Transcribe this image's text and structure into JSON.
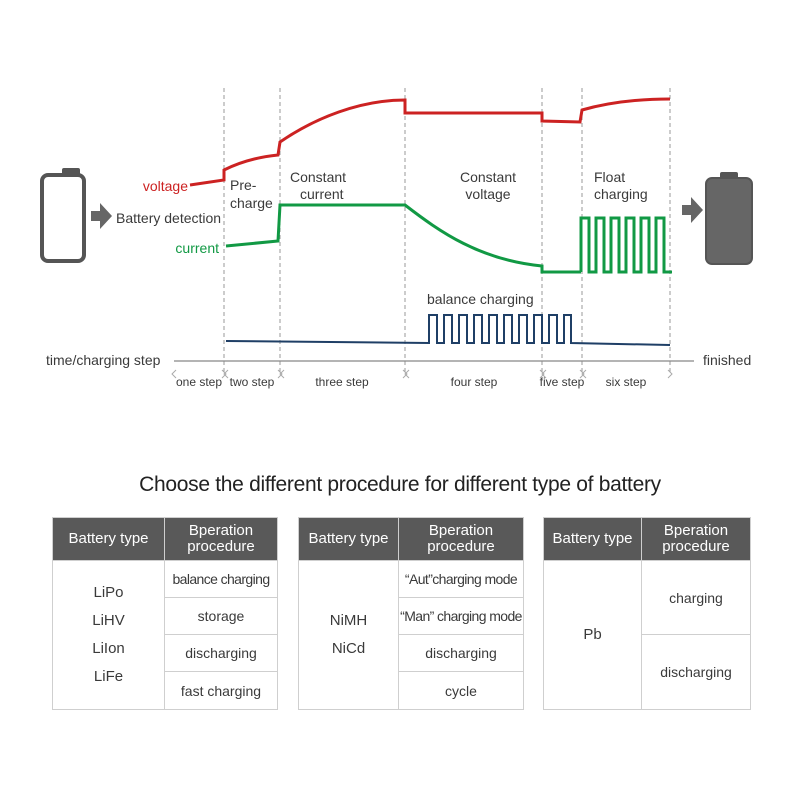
{
  "diagram": {
    "battery_detection": "Battery detection",
    "voltage_label": "voltage",
    "current_label": "current",
    "balance_label": "balance charging",
    "time_label": "time/charging step",
    "finished_label": "finished",
    "phases": {
      "precharge": [
        "Pre-",
        "charge"
      ],
      "constant_current": [
        "Constant",
        "current"
      ],
      "constant_voltage": [
        "Constant",
        "voltage"
      ],
      "float_charging": [
        "Float",
        "charging"
      ]
    },
    "steps": [
      "one step",
      "two step",
      "three step",
      "four step",
      "five step",
      "six step"
    ],
    "colors": {
      "voltage": "#cc2222",
      "current": "#119944",
      "balance": "#1f3f66",
      "battery": "#555555"
    }
  },
  "subtitle": "Choose the different procedure for different type of battery",
  "tables": {
    "t1": {
      "header_type": "Battery type",
      "header_proc": [
        "Bperation",
        "procedure"
      ],
      "types": [
        "LiPo",
        "LiHV",
        "LiIon",
        "LiFe"
      ],
      "procedures": [
        "balance charging",
        "storage",
        "discharging",
        "fast charging"
      ]
    },
    "t2": {
      "header_type": "Battery type",
      "header_proc": [
        "Bperation",
        "procedure"
      ],
      "types": [
        "NiMH",
        "NiCd"
      ],
      "procedures": [
        "“Aut”charging mode",
        "“Man” charging mode",
        "discharging",
        "cycle"
      ]
    },
    "t3": {
      "header_type": "Battery type",
      "header_proc": [
        "Bperation",
        "procedure"
      ],
      "types": [
        "Pb"
      ],
      "procedures": [
        "charging",
        "discharging"
      ]
    }
  }
}
